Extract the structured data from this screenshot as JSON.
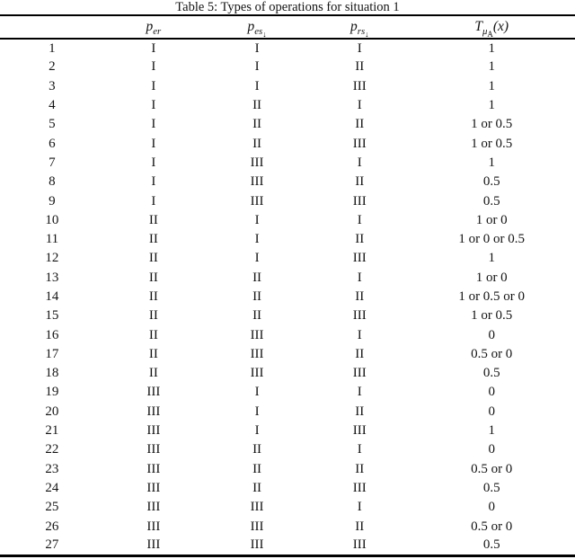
{
  "table": {
    "title": "Table 5: Types of operations for situation 1",
    "columns": [
      {
        "key": "num",
        "base": "",
        "sub": "",
        "subsub": "",
        "suffix": ""
      },
      {
        "key": "per",
        "base": "p",
        "sub": "er",
        "subsub": "",
        "suffix": ""
      },
      {
        "key": "pes",
        "base": "p",
        "sub": "es",
        "subsub": "↓",
        "suffix": ""
      },
      {
        "key": "prs",
        "base": "p",
        "sub": "rs",
        "subsub": "↓",
        "suffix": ""
      },
      {
        "key": "tmua",
        "base": "T",
        "sub": "μ",
        "subsub": "A",
        "suffix": "(x)"
      }
    ],
    "rows": [
      [
        "1",
        "I",
        "I",
        "I",
        "1"
      ],
      [
        "2",
        "I",
        "I",
        "II",
        "1"
      ],
      [
        "3",
        "I",
        "I",
        "III",
        "1"
      ],
      [
        "4",
        "I",
        "II",
        "I",
        "1"
      ],
      [
        "5",
        "I",
        "II",
        "II",
        "1 or 0.5"
      ],
      [
        "6",
        "I",
        "II",
        "III",
        "1 or 0.5"
      ],
      [
        "7",
        "I",
        "III",
        "I",
        "1"
      ],
      [
        "8",
        "I",
        "III",
        "II",
        "0.5"
      ],
      [
        "9",
        "I",
        "III",
        "III",
        "0.5"
      ],
      [
        "10",
        "II",
        "I",
        "I",
        "1 or 0"
      ],
      [
        "11",
        "II",
        "I",
        "II",
        "1 or 0 or 0.5"
      ],
      [
        "12",
        "II",
        "I",
        "III",
        "1"
      ],
      [
        "13",
        "II",
        "II",
        "I",
        "1 or 0"
      ],
      [
        "14",
        "II",
        "II",
        "II",
        "1 or 0.5 or 0"
      ],
      [
        "15",
        "II",
        "II",
        "III",
        "1 or 0.5"
      ],
      [
        "16",
        "II",
        "III",
        "I",
        "0"
      ],
      [
        "17",
        "II",
        "III",
        "II",
        "0.5 or 0"
      ],
      [
        "18",
        "II",
        "III",
        "III",
        "0.5"
      ],
      [
        "19",
        "III",
        "I",
        "I",
        "0"
      ],
      [
        "20",
        "III",
        "I",
        "II",
        "0"
      ],
      [
        "21",
        "III",
        "I",
        "III",
        "1"
      ],
      [
        "22",
        "III",
        "II",
        "I",
        "0"
      ],
      [
        "23",
        "III",
        "II",
        "II",
        "0.5 or 0"
      ],
      [
        "24",
        "III",
        "II",
        "III",
        "0.5"
      ],
      [
        "25",
        "III",
        "III",
        "I",
        "0"
      ],
      [
        "26",
        "III",
        "III",
        "II",
        "0.5 or 0"
      ],
      [
        "27",
        "III",
        "III",
        "III",
        "0.5"
      ]
    ]
  }
}
